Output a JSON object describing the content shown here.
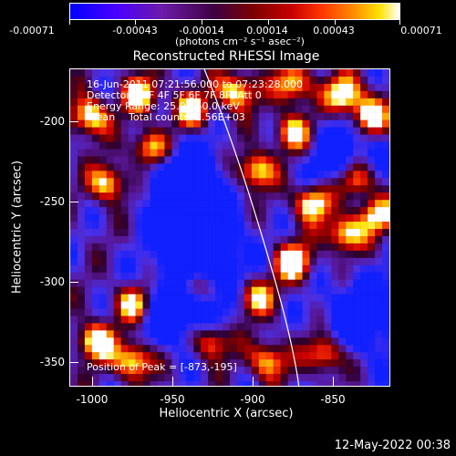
{
  "colorbar": {
    "ticks": [
      "-0.00071",
      "-0.00043",
      "-0.00014",
      "0.00014",
      "0.00043",
      "0.00071"
    ],
    "label": "(photons cm⁻² s⁻¹ asec⁻²)"
  },
  "image_title": "Reconstructed RHESSI Image",
  "overlay": {
    "time_range": "16-Jun-2011 07:21:56.000 to 07:23:28.000",
    "detectors": "Detectors: 3F 4F 5F 6F 7F 8F, Att 0",
    "energy": "Energy Range: 25.0 - 50.0 keV",
    "method": "Clean",
    "counts": "Total counts: 2.56E+03",
    "peak": "Position of Peak = [-873,-195]"
  },
  "axes": {
    "xlabel": "Heliocentric X (arcsec)",
    "ylabel": "Heliocentric Y (arcsec)",
    "xticks": [
      "-1000",
      "-950",
      "-900",
      "-850"
    ],
    "yticks": [
      "-200",
      "-250",
      "-300",
      "-350"
    ]
  },
  "footer": {
    "timestamp": "12-May-2022 00:38"
  },
  "colors": {
    "background": "#000000",
    "limb": "#ffffff",
    "foreground": "#ffffff"
  }
}
